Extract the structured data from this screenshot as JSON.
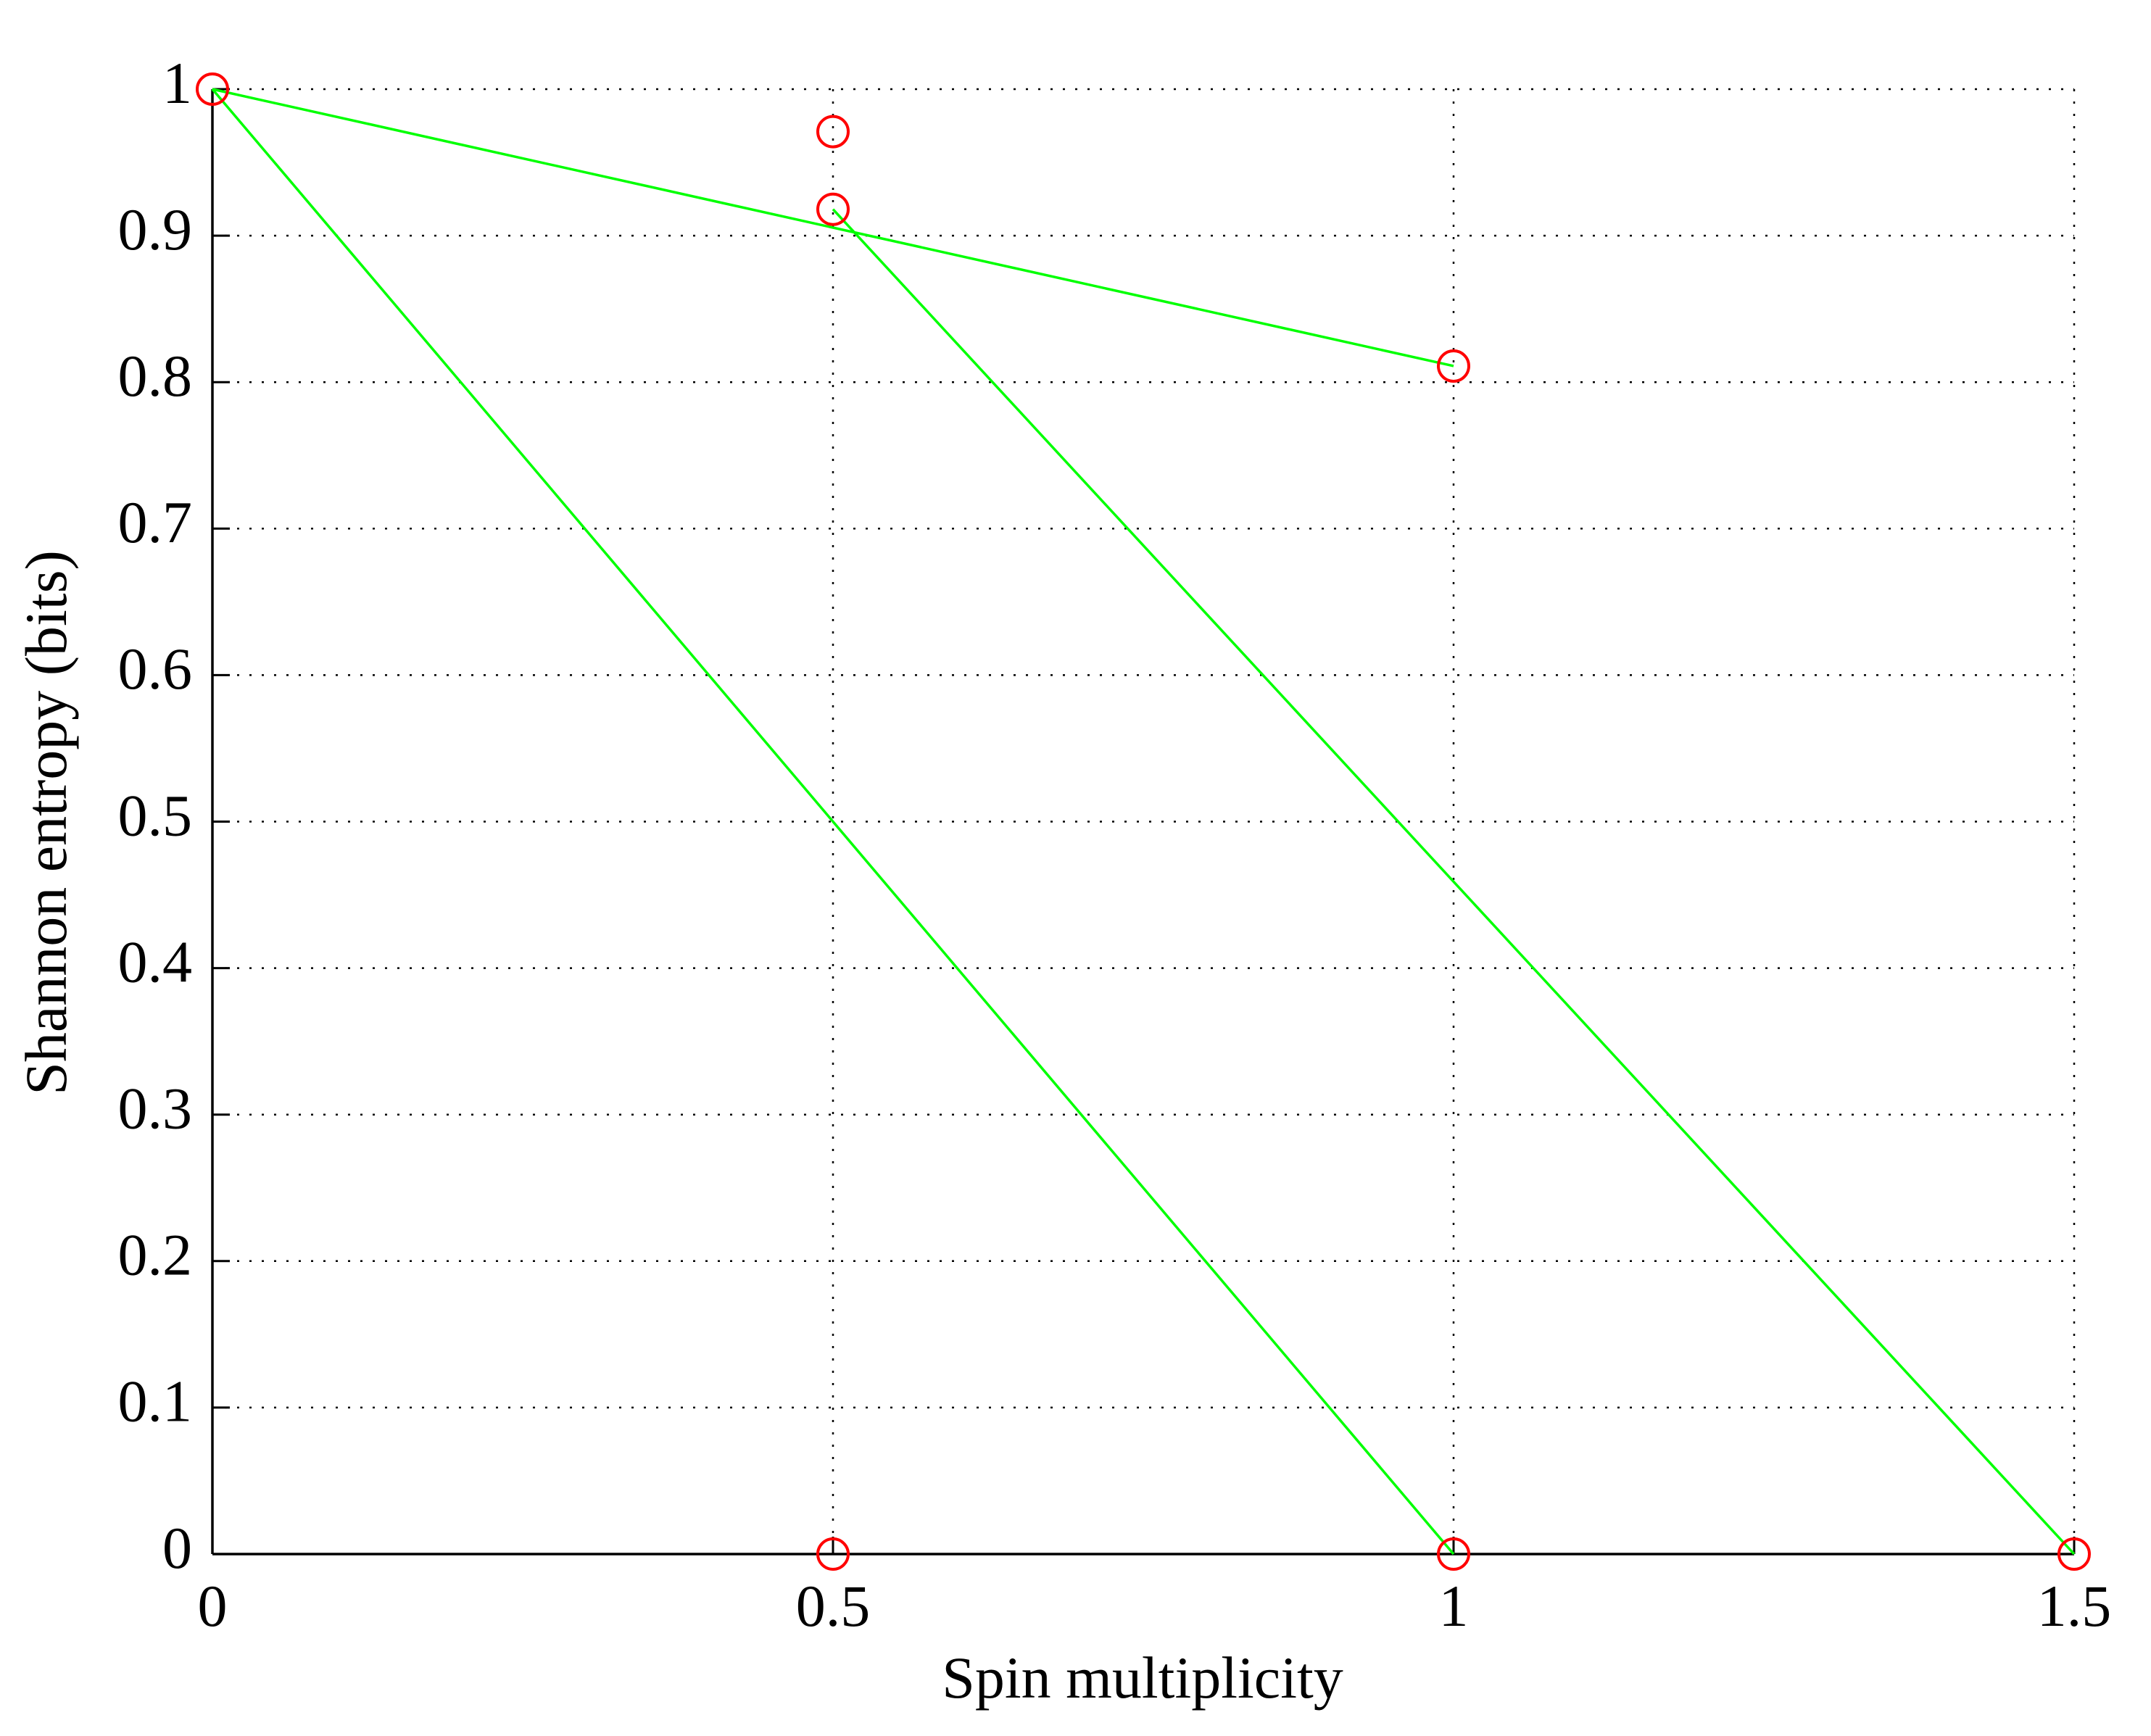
{
  "chart_data": {
    "type": "scatter",
    "xlabel": "Spin multiplicity",
    "ylabel": "Shannon entropy (bits)",
    "xlim": [
      0,
      1.5
    ],
    "ylim": [
      0,
      1
    ],
    "xticks": [
      0,
      0.5,
      1,
      1.5
    ],
    "yticks": [
      0,
      0.1,
      0.2,
      0.3,
      0.4,
      0.5,
      0.6,
      0.7,
      0.8,
      0.9,
      1
    ],
    "grid": true,
    "series": [
      {
        "mode": "lines",
        "color": "#00ff00",
        "x": [
          0,
          1
        ],
        "values": [
          1,
          0.811
        ]
      },
      {
        "mode": "lines",
        "color": "#00ff00",
        "x": [
          0,
          1
        ],
        "values": [
          1,
          0
        ]
      },
      {
        "mode": "lines",
        "color": "#00ff00",
        "x": [
          0.5,
          1.5
        ],
        "values": [
          0.918,
          0
        ]
      },
      {
        "mode": "markers",
        "marker": "circle",
        "color": "#ff0000",
        "x": [
          0,
          0.5,
          0.5,
          1,
          0.5,
          1,
          1.5
        ],
        "values": [
          1,
          0.971,
          0.918,
          0.811,
          0,
          0,
          0
        ]
      }
    ]
  }
}
